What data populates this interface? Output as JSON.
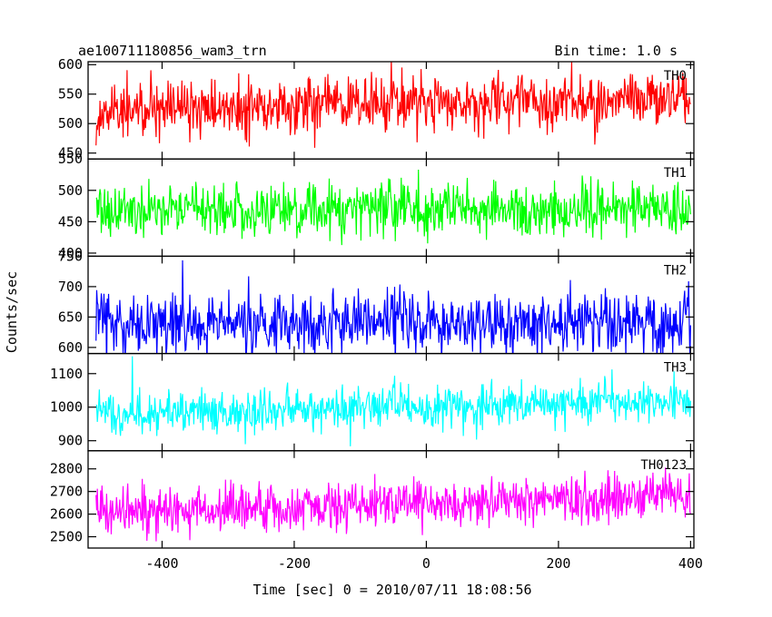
{
  "chart_data": {
    "type": "line",
    "title": "ae100711180856_wam3_trn",
    "bin_time": "Bin time: 1.0 s",
    "xlabel": "Time [sec] 0 = 2010/07/11 18:08:56",
    "ylabel": "Counts/sec",
    "xlim": [
      -512,
      405
    ],
    "x_ticks": [
      -400,
      -200,
      0,
      200,
      400
    ],
    "x_range": [
      -500,
      400
    ],
    "x_step": 1,
    "series": [
      {
        "name": "TH0",
        "color": "#ff0000",
        "ylim": [
          440,
          605
        ],
        "y_ticks": [
          450,
          500,
          550,
          600
        ],
        "mean_start": 520,
        "mean_end": 545,
        "amplitude": 24
      },
      {
        "name": "TH1",
        "color": "#00ff00",
        "ylim": [
          395,
          550
        ],
        "y_ticks": [
          400,
          450,
          500,
          550
        ],
        "mean_start": 470,
        "mean_end": 470,
        "amplitude": 22
      },
      {
        "name": "TH2",
        "color": "#0000ff",
        "ylim": [
          590,
          750
        ],
        "y_ticks": [
          600,
          650,
          700,
          750
        ],
        "mean_start": 640,
        "mean_end": 640,
        "amplitude": 26
      },
      {
        "name": "TH3",
        "color": "#00ffff",
        "ylim": [
          870,
          1160
        ],
        "y_ticks": [
          900,
          1000,
          1100
        ],
        "mean_start": 980,
        "mean_end": 1020,
        "amplitude": 32
      },
      {
        "name": "TH0123",
        "color": "#ff00ff",
        "ylim": [
          2450,
          2880
        ],
        "y_ticks": [
          2500,
          2600,
          2700,
          2800
        ],
        "mean_start": 2610,
        "mean_end": 2680,
        "amplitude": 52
      }
    ]
  }
}
